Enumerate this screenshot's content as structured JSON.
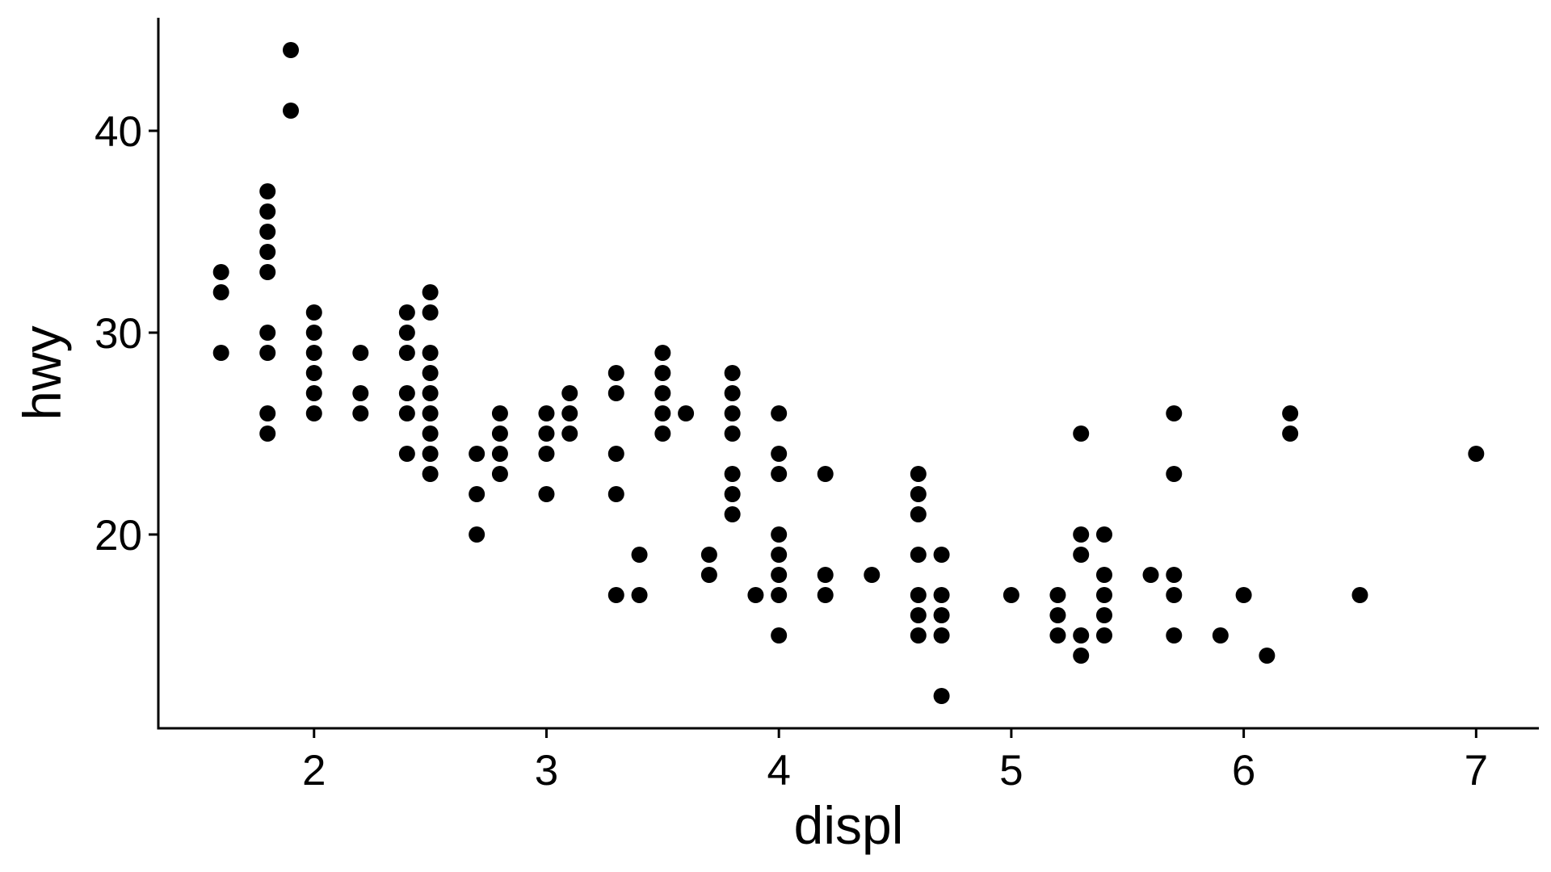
{
  "chart_data": {
    "type": "scatter",
    "title": "",
    "xlabel": "displ",
    "ylabel": "hwy",
    "xlim": [
      1.33,
      7.27
    ],
    "ylim": [
      10.4,
      45.6
    ],
    "xticks": [
      2,
      3,
      4,
      5,
      6,
      7
    ],
    "yticks": [
      20,
      30,
      40
    ],
    "grid": false,
    "legend": "none",
    "point_color": "#000000",
    "points": [
      [
        1.6,
        33
      ],
      [
        1.6,
        32
      ],
      [
        1.6,
        29
      ],
      [
        1.8,
        37
      ],
      [
        1.8,
        36
      ],
      [
        1.8,
        35
      ],
      [
        1.8,
        34
      ],
      [
        1.8,
        33
      ],
      [
        1.8,
        30
      ],
      [
        1.8,
        29
      ],
      [
        1.8,
        26
      ],
      [
        1.8,
        25
      ],
      [
        1.9,
        44
      ],
      [
        1.9,
        41
      ],
      [
        2.0,
        31
      ],
      [
        2.0,
        30
      ],
      [
        2.0,
        29
      ],
      [
        2.0,
        28
      ],
      [
        2.0,
        27
      ],
      [
        2.0,
        26
      ],
      [
        2.2,
        29
      ],
      [
        2.2,
        27
      ],
      [
        2.2,
        26
      ],
      [
        2.4,
        31
      ],
      [
        2.4,
        30
      ],
      [
        2.4,
        29
      ],
      [
        2.4,
        27
      ],
      [
        2.4,
        26
      ],
      [
        2.4,
        24
      ],
      [
        2.5,
        32
      ],
      [
        2.5,
        31
      ],
      [
        2.5,
        29
      ],
      [
        2.5,
        28
      ],
      [
        2.5,
        27
      ],
      [
        2.5,
        26
      ],
      [
        2.5,
        25
      ],
      [
        2.5,
        24
      ],
      [
        2.5,
        23
      ],
      [
        2.7,
        24
      ],
      [
        2.7,
        22
      ],
      [
        2.7,
        20
      ],
      [
        2.8,
        26
      ],
      [
        2.8,
        25
      ],
      [
        2.8,
        24
      ],
      [
        2.8,
        23
      ],
      [
        3.0,
        26
      ],
      [
        3.0,
        25
      ],
      [
        3.0,
        24
      ],
      [
        3.0,
        22
      ],
      [
        3.1,
        27
      ],
      [
        3.1,
        26
      ],
      [
        3.1,
        25
      ],
      [
        3.3,
        28
      ],
      [
        3.3,
        27
      ],
      [
        3.3,
        24
      ],
      [
        3.3,
        22
      ],
      [
        3.3,
        17
      ],
      [
        3.4,
        19
      ],
      [
        3.4,
        17
      ],
      [
        3.5,
        29
      ],
      [
        3.5,
        28
      ],
      [
        3.5,
        27
      ],
      [
        3.5,
        26
      ],
      [
        3.5,
        25
      ],
      [
        3.6,
        26
      ],
      [
        3.7,
        19
      ],
      [
        3.7,
        18
      ],
      [
        3.8,
        28
      ],
      [
        3.8,
        27
      ],
      [
        3.8,
        26
      ],
      [
        3.8,
        25
      ],
      [
        3.8,
        23
      ],
      [
        3.8,
        22
      ],
      [
        3.8,
        21
      ],
      [
        3.9,
        17
      ],
      [
        4.0,
        26
      ],
      [
        4.0,
        24
      ],
      [
        4.0,
        23
      ],
      [
        4.0,
        20
      ],
      [
        4.0,
        19
      ],
      [
        4.0,
        18
      ],
      [
        4.0,
        17
      ],
      [
        4.0,
        15
      ],
      [
        4.2,
        23
      ],
      [
        4.2,
        18
      ],
      [
        4.2,
        17
      ],
      [
        4.4,
        18
      ],
      [
        4.6,
        23
      ],
      [
        4.6,
        22
      ],
      [
        4.6,
        21
      ],
      [
        4.6,
        19
      ],
      [
        4.6,
        17
      ],
      [
        4.6,
        16
      ],
      [
        4.6,
        15
      ],
      [
        4.7,
        19
      ],
      [
        4.7,
        17
      ],
      [
        4.7,
        16
      ],
      [
        4.7,
        15
      ],
      [
        4.7,
        12
      ],
      [
        5.0,
        17
      ],
      [
        5.2,
        17
      ],
      [
        5.2,
        16
      ],
      [
        5.2,
        15
      ],
      [
        5.3,
        25
      ],
      [
        5.3,
        20
      ],
      [
        5.3,
        19
      ],
      [
        5.3,
        15
      ],
      [
        5.3,
        14
      ],
      [
        5.4,
        20
      ],
      [
        5.4,
        18
      ],
      [
        5.4,
        17
      ],
      [
        5.4,
        16
      ],
      [
        5.4,
        15
      ],
      [
        5.6,
        18
      ],
      [
        5.7,
        26
      ],
      [
        5.7,
        23
      ],
      [
        5.7,
        18
      ],
      [
        5.7,
        17
      ],
      [
        5.7,
        15
      ],
      [
        5.9,
        15
      ],
      [
        6.0,
        17
      ],
      [
        6.1,
        14
      ],
      [
        6.2,
        26
      ],
      [
        6.2,
        25
      ],
      [
        6.5,
        17
      ],
      [
        7.0,
        24
      ]
    ]
  }
}
